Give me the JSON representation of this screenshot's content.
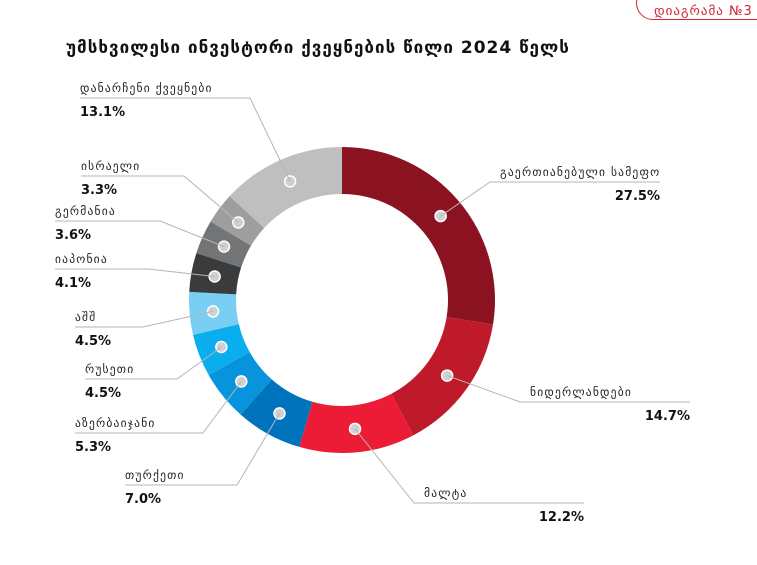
{
  "badge": {
    "label": "დიაგრამა №3"
  },
  "title": "უმსხვილესი ინვესტორი ქვეყნების წილი 2024 წელს",
  "chart_data": {
    "type": "pie",
    "subtype": "donut",
    "unit": "%",
    "slices": [
      {
        "name": "გაერთიანებული სამეფო",
        "value": 27.5,
        "label": "27.5%",
        "color": "#8b1220"
      },
      {
        "name": "ნიდერლანდები",
        "value": 14.7,
        "label": "14.7%",
        "color": "#be1a29"
      },
      {
        "name": "მალტა",
        "value": 12.2,
        "label": "12.2%",
        "color": "#ec1c36"
      },
      {
        "name": "თურქეთი",
        "value": 7.0,
        "label": "7.0%",
        "color": "#0073bd"
      },
      {
        "name": "აზერბაიჯანი",
        "value": 5.3,
        "label": "5.3%",
        "color": "#0894dc"
      },
      {
        "name": "რუსეთი",
        "value": 4.5,
        "label": "4.5%",
        "color": "#0aaeee"
      },
      {
        "name": "აშშ",
        "value": 4.5,
        "label": "4.5%",
        "color": "#78cff3"
      },
      {
        "name": "იაპონია",
        "value": 4.1,
        "label": "4.1%",
        "color": "#3a3b3d"
      },
      {
        "name": "გერმანია",
        "value": 3.6,
        "label": "3.6%",
        "color": "#737476"
      },
      {
        "name": "ისრაელი",
        "value": 3.3,
        "label": "3.3%",
        "color": "#9d9ea0"
      },
      {
        "name": "დანარჩენი ქვეყნები",
        "value": 13.1,
        "label": "13.1%",
        "color": "#bfbfbf"
      }
    ]
  }
}
